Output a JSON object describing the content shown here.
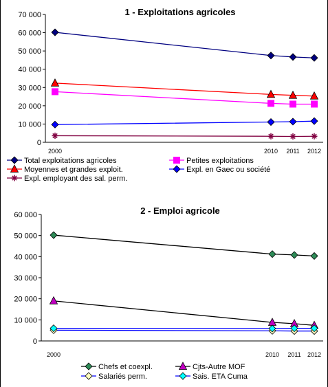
{
  "chart_data": [
    {
      "type": "line",
      "title": "1 - Exploitations agricoles",
      "x": [
        2000,
        2010,
        2011,
        2012
      ],
      "xtick_labels": [
        "2000",
        "2010",
        "2011",
        "2012"
      ],
      "ylim": [
        0,
        70000
      ],
      "yticks": [
        0,
        10000,
        20000,
        30000,
        40000,
        50000,
        60000,
        70000
      ],
      "ytick_labels": [
        "0",
        "10 000",
        "20 000",
        "30 000",
        "40 000",
        "50 000",
        "60 000",
        "70 000"
      ],
      "grid": false,
      "legend_placement": "bottom",
      "series": [
        {
          "name": "Total exploitations agricoles",
          "values": [
            60200,
            47500,
            46700,
            46200
          ],
          "color": "#000080",
          "marker": "diamond",
          "marker_fill": "#000080"
        },
        {
          "name": "Petites exploitations",
          "values": [
            27700,
            21300,
            20900,
            20900
          ],
          "color": "#ff00ff",
          "marker": "square",
          "marker_fill": "#ff00ff"
        },
        {
          "name": "Moyennes et grandes exploit.",
          "values": [
            32400,
            26200,
            25700,
            25300
          ],
          "color": "#ff0000",
          "marker": "triangle",
          "marker_fill": "#ff0000"
        },
        {
          "name": "Expl. en Gaec ou société",
          "values": [
            9700,
            11100,
            11300,
            11600
          ],
          "color": "#0000ff",
          "marker": "diamond",
          "marker_fill": "#0000ff"
        },
        {
          "name": "Expl. employant des sal. perm.",
          "values": [
            3600,
            3300,
            3200,
            3300
          ],
          "color": "#800040",
          "marker": "star",
          "marker_fill": "#800040"
        }
      ]
    },
    {
      "type": "line",
      "title": "2 - Emploi agricole",
      "x": [
        2000,
        2010,
        2011,
        2012
      ],
      "xtick_labels": [
        "2000",
        "2010",
        "2011",
        "2012"
      ],
      "ylim": [
        0,
        60000
      ],
      "yticks": [
        0,
        10000,
        20000,
        30000,
        40000,
        50000,
        60000
      ],
      "ytick_labels": [
        "0",
        "10 000",
        "20 000",
        "30 000",
        "40 000",
        "50 000",
        "60 000"
      ],
      "grid": false,
      "legend_placement": "bottom",
      "series": [
        {
          "name": "Chefs et coexpl.",
          "values": [
            50200,
            41200,
            40800,
            40300
          ],
          "color": "#000000",
          "marker": "diamond",
          "marker_fill": "#2e8b57"
        },
        {
          "name": "Cjts-Autre MOF",
          "values": [
            19000,
            8800,
            8200,
            7400
          ],
          "color": "#000000",
          "marker": "triangle",
          "marker_fill": "#c000c0"
        },
        {
          "name": "Salariés perm.",
          "values": [
            5100,
            4800,
            4700,
            4700
          ],
          "color": "#0000ff",
          "marker": "diamond",
          "marker_fill": "#ffffc0"
        },
        {
          "name": "Sais. ETA Cuma",
          "values": [
            6000,
            5900,
            6000,
            6000
          ],
          "color": "#0000ff",
          "marker": "diamond",
          "marker_fill": "#00ffff"
        }
      ]
    }
  ]
}
